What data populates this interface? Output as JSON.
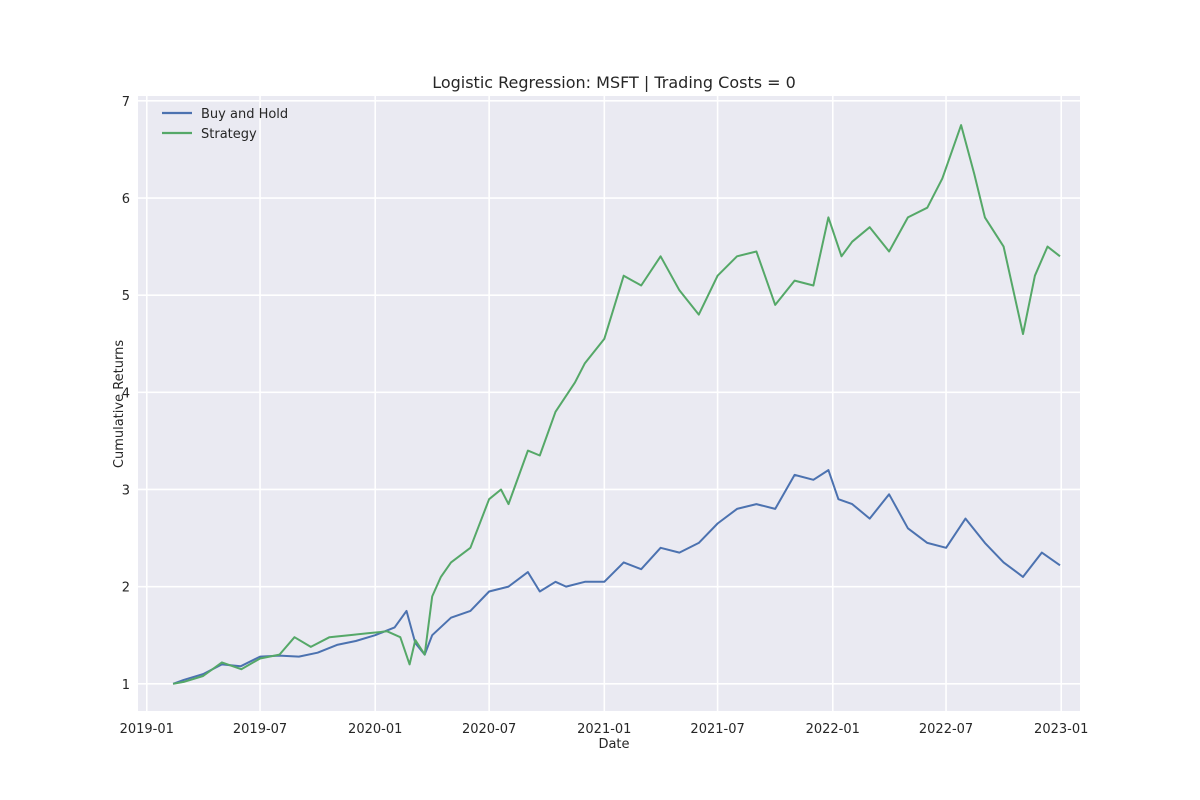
{
  "chart_data": {
    "type": "line",
    "title": "Logistic Regression: MSFT | Trading Costs = 0",
    "xlabel": "Date",
    "ylabel": "Cumulative Returns",
    "grid": true,
    "legend_position": "upper-left",
    "x_ticks": [
      "2019-01",
      "2019-07",
      "2020-01",
      "2020-07",
      "2021-01",
      "2021-07",
      "2022-01",
      "2022-07",
      "2023-01"
    ],
    "y_ticks": [
      1,
      2,
      3,
      4,
      5,
      6,
      7
    ],
    "xlim": [
      "2018-12-18",
      "2023-01-31"
    ],
    "ylim": [
      0.72,
      7.05
    ],
    "series": [
      {
        "name": "Buy and Hold",
        "color": "#4c72b0",
        "points": [
          [
            "2019-02-12",
            1.0
          ],
          [
            "2019-03-01",
            1.04
          ],
          [
            "2019-04-01",
            1.1
          ],
          [
            "2019-05-01",
            1.2
          ],
          [
            "2019-05-31",
            1.18
          ],
          [
            "2019-07-01",
            1.28
          ],
          [
            "2019-08-01",
            1.29
          ],
          [
            "2019-09-01",
            1.28
          ],
          [
            "2019-10-01",
            1.32
          ],
          [
            "2019-11-01",
            1.4
          ],
          [
            "2019-12-01",
            1.44
          ],
          [
            "2020-01-01",
            1.5
          ],
          [
            "2020-02-01",
            1.58
          ],
          [
            "2020-02-20",
            1.75
          ],
          [
            "2020-03-05",
            1.42
          ],
          [
            "2020-03-20",
            1.3
          ],
          [
            "2020-04-01",
            1.5
          ],
          [
            "2020-05-01",
            1.68
          ],
          [
            "2020-06-01",
            1.75
          ],
          [
            "2020-07-01",
            1.95
          ],
          [
            "2020-08-01",
            2.0
          ],
          [
            "2020-09-01",
            2.15
          ],
          [
            "2020-09-20",
            1.95
          ],
          [
            "2020-10-15",
            2.05
          ],
          [
            "2020-11-01",
            2.0
          ],
          [
            "2020-12-01",
            2.05
          ],
          [
            "2021-01-01",
            2.05
          ],
          [
            "2021-02-01",
            2.25
          ],
          [
            "2021-03-01",
            2.18
          ],
          [
            "2021-04-01",
            2.4
          ],
          [
            "2021-05-01",
            2.35
          ],
          [
            "2021-06-01",
            2.45
          ],
          [
            "2021-07-01",
            2.65
          ],
          [
            "2021-08-01",
            2.8
          ],
          [
            "2021-09-01",
            2.85
          ],
          [
            "2021-10-01",
            2.8
          ],
          [
            "2021-11-01",
            3.15
          ],
          [
            "2021-12-01",
            3.1
          ],
          [
            "2021-12-25",
            3.2
          ],
          [
            "2022-01-10",
            2.9
          ],
          [
            "2022-02-01",
            2.85
          ],
          [
            "2022-03-01",
            2.7
          ],
          [
            "2022-04-01",
            2.95
          ],
          [
            "2022-05-01",
            2.6
          ],
          [
            "2022-06-01",
            2.45
          ],
          [
            "2022-07-01",
            2.4
          ],
          [
            "2022-08-01",
            2.7
          ],
          [
            "2022-09-01",
            2.45
          ],
          [
            "2022-10-01",
            2.25
          ],
          [
            "2022-11-01",
            2.1
          ],
          [
            "2022-12-01",
            2.35
          ],
          [
            "2022-12-30",
            2.22
          ]
        ]
      },
      {
        "name": "Strategy",
        "color": "#55a868",
        "points": [
          [
            "2019-02-12",
            1.0
          ],
          [
            "2019-03-01",
            1.02
          ],
          [
            "2019-04-01",
            1.08
          ],
          [
            "2019-05-01",
            1.22
          ],
          [
            "2019-06-01",
            1.15
          ],
          [
            "2019-07-01",
            1.26
          ],
          [
            "2019-08-01",
            1.3
          ],
          [
            "2019-08-25",
            1.48
          ],
          [
            "2019-09-20",
            1.38
          ],
          [
            "2019-10-20",
            1.48
          ],
          [
            "2019-11-20",
            1.5
          ],
          [
            "2019-12-20",
            1.52
          ],
          [
            "2020-01-20",
            1.54
          ],
          [
            "2020-02-10",
            1.48
          ],
          [
            "2020-02-25",
            1.2
          ],
          [
            "2020-03-05",
            1.45
          ],
          [
            "2020-03-20",
            1.3
          ],
          [
            "2020-04-01",
            1.9
          ],
          [
            "2020-04-15",
            2.1
          ],
          [
            "2020-05-01",
            2.25
          ],
          [
            "2020-06-01",
            2.4
          ],
          [
            "2020-07-01",
            2.9
          ],
          [
            "2020-07-20",
            3.0
          ],
          [
            "2020-08-01",
            2.85
          ],
          [
            "2020-09-01",
            3.4
          ],
          [
            "2020-09-20",
            3.35
          ],
          [
            "2020-10-15",
            3.8
          ],
          [
            "2020-11-15",
            4.1
          ],
          [
            "2020-12-01",
            4.3
          ],
          [
            "2021-01-01",
            4.55
          ],
          [
            "2021-02-01",
            5.2
          ],
          [
            "2021-03-01",
            5.1
          ],
          [
            "2021-04-01",
            5.4
          ],
          [
            "2021-05-01",
            5.05
          ],
          [
            "2021-06-01",
            4.8
          ],
          [
            "2021-07-01",
            5.2
          ],
          [
            "2021-08-01",
            5.4
          ],
          [
            "2021-09-01",
            5.45
          ],
          [
            "2021-10-01",
            4.9
          ],
          [
            "2021-11-01",
            5.15
          ],
          [
            "2021-12-01",
            5.1
          ],
          [
            "2021-12-25",
            5.8
          ],
          [
            "2022-01-15",
            5.4
          ],
          [
            "2022-02-01",
            5.55
          ],
          [
            "2022-03-01",
            5.7
          ],
          [
            "2022-04-01",
            5.45
          ],
          [
            "2022-05-01",
            5.8
          ],
          [
            "2022-06-01",
            5.9
          ],
          [
            "2022-06-25",
            6.2
          ],
          [
            "2022-07-25",
            6.75
          ],
          [
            "2022-08-15",
            6.25
          ],
          [
            "2022-09-01",
            5.8
          ],
          [
            "2022-10-01",
            5.5
          ],
          [
            "2022-11-01",
            4.6
          ],
          [
            "2022-11-20",
            5.2
          ],
          [
            "2022-12-10",
            5.5
          ],
          [
            "2022-12-30",
            5.4
          ]
        ]
      }
    ]
  }
}
